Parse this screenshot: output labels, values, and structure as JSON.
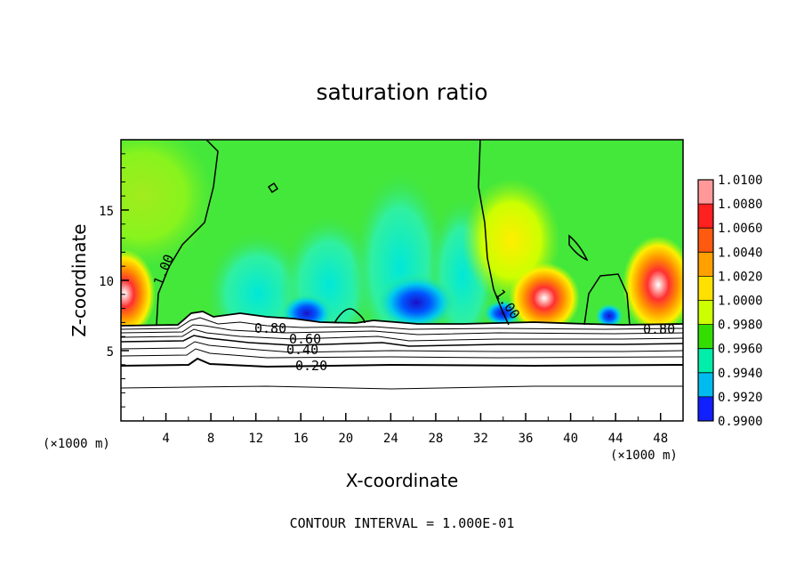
{
  "chart_data": {
    "type": "heatmap",
    "title": "saturation ratio",
    "xlabel": "X-coordinate",
    "ylabel": "Z-coordinate",
    "x_unit_left": "(×1000 m)",
    "x_unit_right": "(×1000 m)",
    "xlim": [
      0,
      50
    ],
    "ylim": [
      0,
      20
    ],
    "xticks": [
      "4",
      "8",
      "12",
      "16",
      "20",
      "24",
      "28",
      "32",
      "36",
      "40",
      "44",
      "48"
    ],
    "yticks": [
      "5",
      "10",
      "15"
    ],
    "colorbar": {
      "labels": [
        "1.0100",
        "1.0080",
        "1.0060",
        "1.0040",
        "1.0020",
        "1.0000",
        "0.9980",
        "0.9960",
        "0.9940",
        "0.9920",
        "0.9900"
      ],
      "colors": [
        "#ff9999",
        "#ff2020",
        "#ff5a10",
        "#ffa000",
        "#ffe000",
        "#ccff00",
        "#33dd00",
        "#00eeaa",
        "#00bbee",
        "#1020ff",
        "#5500aa"
      ]
    },
    "contour_labels": [
      "1.00",
      "1.00",
      "0.80",
      "0.80",
      "0.60",
      "0.40",
      "0.20"
    ],
    "footer": "CONTOUR INTERVAL = 1.000E-01"
  }
}
